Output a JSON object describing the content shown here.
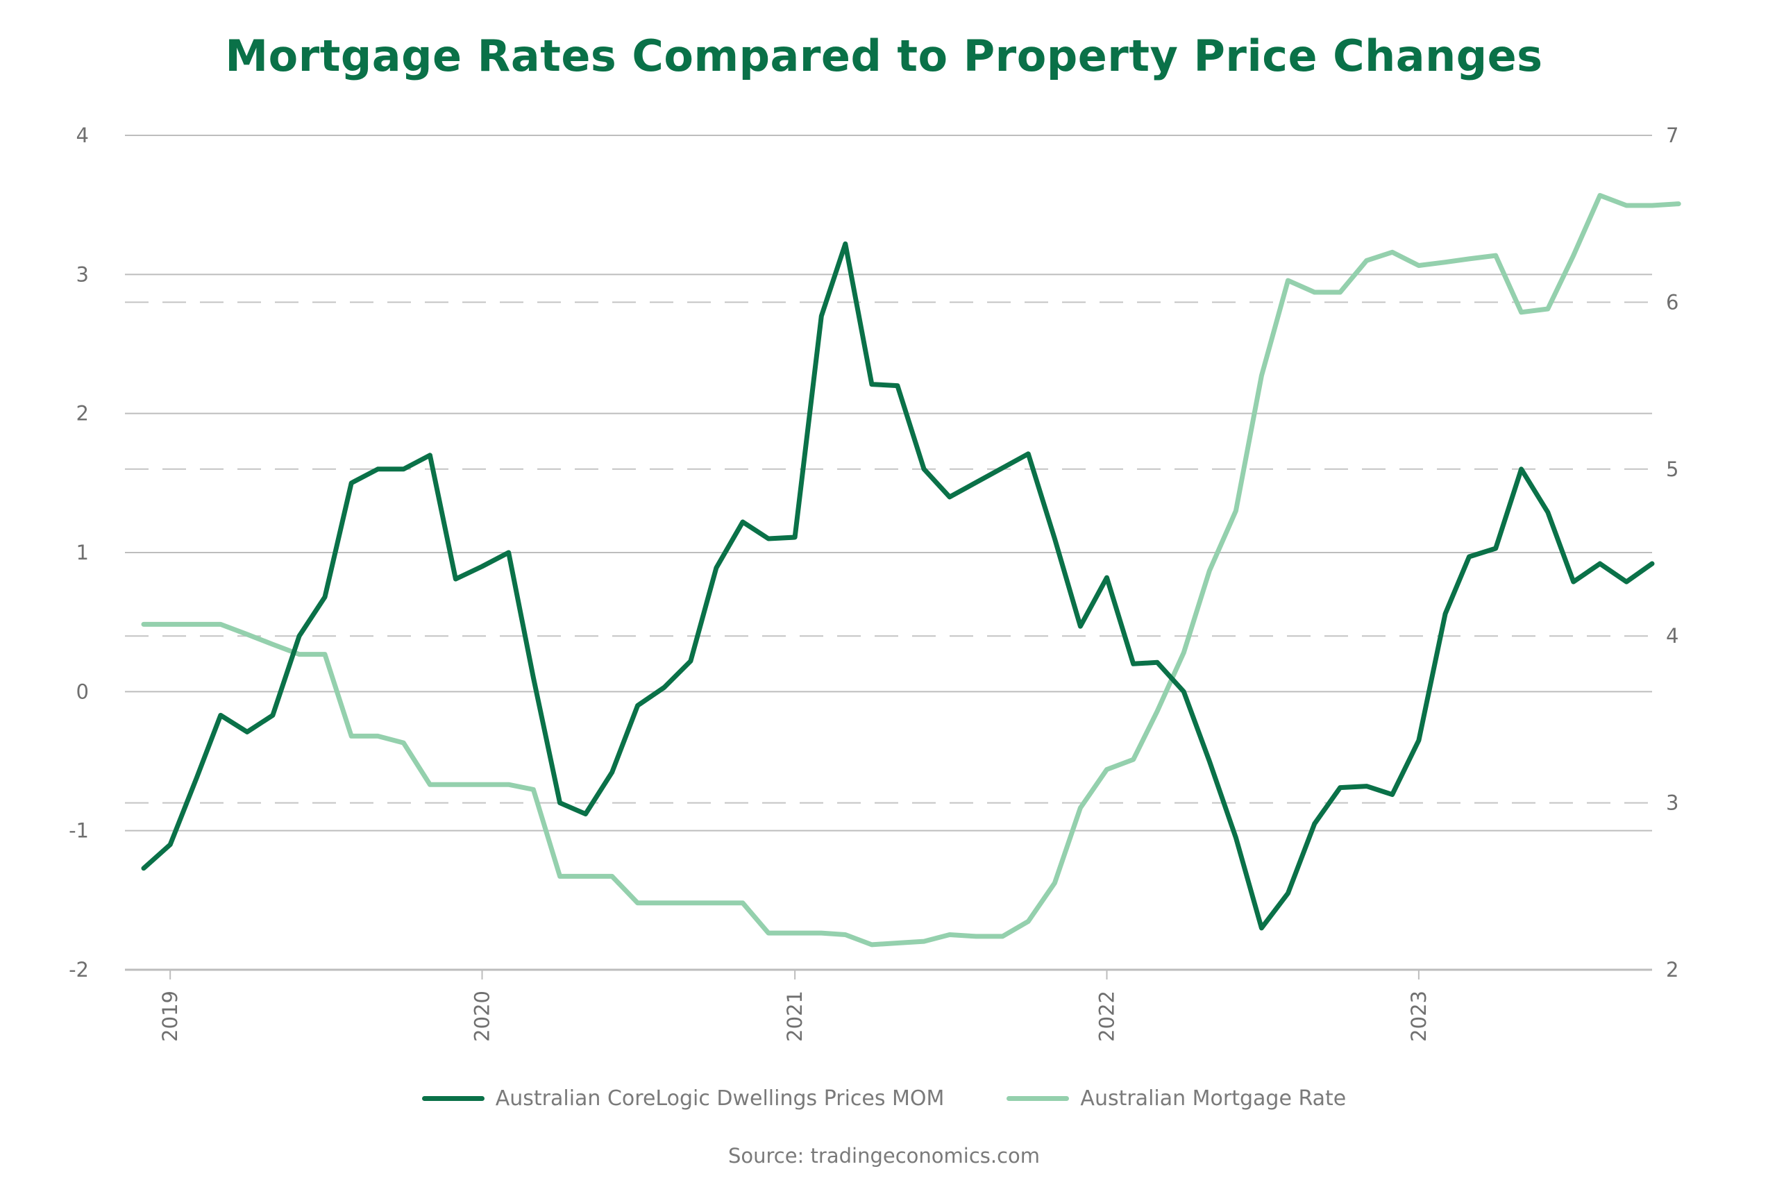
{
  "chart_data": {
    "type": "line",
    "title": "Mortgage Rates Compared to Property Price Changes",
    "source": "Source: tradingeconomics.com",
    "y_left": {
      "ylim": [
        -2,
        4
      ],
      "ticks": [
        "-2",
        "-1",
        "0",
        "1",
        "2",
        "3",
        "4"
      ]
    },
    "y_right": {
      "ylim": [
        2,
        7
      ],
      "ticks": [
        "2",
        "3",
        "4",
        "5",
        "6",
        "7"
      ]
    },
    "x_range": [
      "2018-12-01",
      "2023-10-01"
    ],
    "x_ticks": [
      {
        "label": "2019",
        "date": "2019-01-01"
      },
      {
        "label": "2020",
        "date": "2020-01-01"
      },
      {
        "label": "2021",
        "date": "2021-01-01"
      },
      {
        "label": "2022",
        "date": "2022-01-01"
      },
      {
        "label": "2023",
        "date": "2023-01-01"
      }
    ],
    "grid": "horizontal",
    "legend_position": "bottom",
    "series": [
      {
        "name": "Australian CoreLogic Dwellings Prices MOM",
        "axis": "left",
        "color": "#0a7148",
        "points": [
          [
            "2018-12-01",
            -1.27
          ],
          [
            "2019-01-01",
            -1.1
          ],
          [
            "2019-02-01",
            -0.62
          ],
          [
            "2019-03-01",
            -0.17
          ],
          [
            "2019-04-01",
            -0.29
          ],
          [
            "2019-05-01",
            -0.17
          ],
          [
            "2019-06-01",
            0.4
          ],
          [
            "2019-07-01",
            0.68
          ],
          [
            "2019-08-01",
            1.5
          ],
          [
            "2019-09-01",
            1.6
          ],
          [
            "2019-10-01",
            1.6
          ],
          [
            "2019-11-01",
            1.7
          ],
          [
            "2019-12-01",
            0.81
          ],
          [
            "2020-01-01",
            0.9
          ],
          [
            "2020-02-01",
            1.0
          ],
          [
            "2020-03-01",
            0.1
          ],
          [
            "2020-04-01",
            -0.8
          ],
          [
            "2020-05-01",
            -0.88
          ],
          [
            "2020-06-01",
            -0.58
          ],
          [
            "2020-07-01",
            -0.1
          ],
          [
            "2020-08-01",
            0.03
          ],
          [
            "2020-09-01",
            0.22
          ],
          [
            "2020-10-01",
            0.89
          ],
          [
            "2020-11-01",
            1.22
          ],
          [
            "2020-12-01",
            1.1
          ],
          [
            "2021-01-01",
            1.11
          ],
          [
            "2021-02-01",
            2.7
          ],
          [
            "2021-03-01",
            3.22
          ],
          [
            "2021-04-01",
            2.21
          ],
          [
            "2021-05-01",
            2.2
          ],
          [
            "2021-06-01",
            1.6
          ],
          [
            "2021-07-01",
            1.4
          ],
          [
            "2021-10-01",
            1.71
          ],
          [
            "2021-11-01",
            1.1
          ],
          [
            "2021-12-01",
            0.47
          ],
          [
            "2022-01-01",
            0.82
          ],
          [
            "2022-02-01",
            0.2
          ],
          [
            "2022-03-01",
            0.21
          ],
          [
            "2022-04-01",
            0.0
          ],
          [
            "2022-05-01",
            -0.5
          ],
          [
            "2022-06-01",
            -1.05
          ],
          [
            "2022-07-01",
            -1.7
          ],
          [
            "2022-08-01",
            -1.45
          ],
          [
            "2022-09-01",
            -0.95
          ],
          [
            "2022-10-01",
            -0.69
          ],
          [
            "2022-11-01",
            -0.68
          ],
          [
            "2022-12-01",
            -0.74
          ],
          [
            "2023-01-01",
            -0.35
          ],
          [
            "2023-02-01",
            0.56
          ],
          [
            "2023-03-01",
            0.97
          ],
          [
            "2023-04-01",
            1.03
          ],
          [
            "2023-05-01",
            1.6
          ],
          [
            "2023-06-01",
            1.29
          ],
          [
            "2023-07-01",
            0.79
          ],
          [
            "2023-08-01",
            0.92
          ],
          [
            "2023-09-01",
            0.79
          ],
          [
            "2023-10-01",
            0.92
          ]
        ]
      },
      {
        "name": "Australian Mortgage Rate",
        "axis": "right",
        "color": "#94d0ad",
        "points": [
          [
            "2018-12-01",
            4.07
          ],
          [
            "2019-01-01",
            4.07
          ],
          [
            "2019-02-01",
            4.07
          ],
          [
            "2019-03-01",
            4.07
          ],
          [
            "2019-04-01",
            4.01
          ],
          [
            "2019-05-01",
            3.95
          ],
          [
            "2019-06-01",
            3.89
          ],
          [
            "2019-07-01",
            3.89
          ],
          [
            "2019-08-01",
            3.4
          ],
          [
            "2019-09-01",
            3.4
          ],
          [
            "2019-10-01",
            3.36
          ],
          [
            "2019-11-01",
            3.11
          ],
          [
            "2019-12-01",
            3.11
          ],
          [
            "2020-01-01",
            3.11
          ],
          [
            "2020-02-01",
            3.11
          ],
          [
            "2020-03-01",
            3.08
          ],
          [
            "2020-04-01",
            2.56
          ],
          [
            "2020-05-01",
            2.56
          ],
          [
            "2020-06-01",
            2.56
          ],
          [
            "2020-07-01",
            2.4
          ],
          [
            "2020-08-01",
            2.4
          ],
          [
            "2020-09-01",
            2.4
          ],
          [
            "2020-10-01",
            2.4
          ],
          [
            "2020-11-01",
            2.4
          ],
          [
            "2020-12-01",
            2.22
          ],
          [
            "2021-01-01",
            2.22
          ],
          [
            "2021-02-01",
            2.22
          ],
          [
            "2021-03-01",
            2.21
          ],
          [
            "2021-04-01",
            2.15
          ],
          [
            "2021-05-01",
            2.16
          ],
          [
            "2021-06-01",
            2.17
          ],
          [
            "2021-07-01",
            2.21
          ],
          [
            "2021-08-01",
            2.2
          ],
          [
            "2021-09-01",
            2.2
          ],
          [
            "2021-10-01",
            2.29
          ],
          [
            "2021-11-01",
            2.52
          ],
          [
            "2021-12-01",
            2.97
          ],
          [
            "2022-01-01",
            3.2
          ],
          [
            "2022-02-01",
            3.26
          ],
          [
            "2022-03-01",
            3.55
          ],
          [
            "2022-04-01",
            3.9
          ],
          [
            "2022-05-01",
            4.39
          ],
          [
            "2022-06-01",
            4.75
          ],
          [
            "2022-07-01",
            5.56
          ],
          [
            "2022-08-01",
            6.13
          ],
          [
            "2022-09-01",
            6.06
          ],
          [
            "2022-10-01",
            6.06
          ],
          [
            "2022-11-01",
            6.25
          ],
          [
            "2022-12-01",
            6.3
          ],
          [
            "2023-01-01",
            6.22
          ],
          [
            "2023-02-01",
            6.24
          ],
          [
            "2023-03-01",
            6.26
          ],
          [
            "2023-04-01",
            6.28
          ],
          [
            "2023-05-01",
            5.94
          ],
          [
            "2023-06-01",
            5.96
          ],
          [
            "2023-07-01",
            6.28
          ],
          [
            "2023-08-01",
            6.64
          ],
          [
            "2023-09-01",
            6.58
          ],
          [
            "2023-10-01",
            6.58
          ],
          [
            "2023-11-01",
            6.59
          ]
        ]
      }
    ]
  }
}
